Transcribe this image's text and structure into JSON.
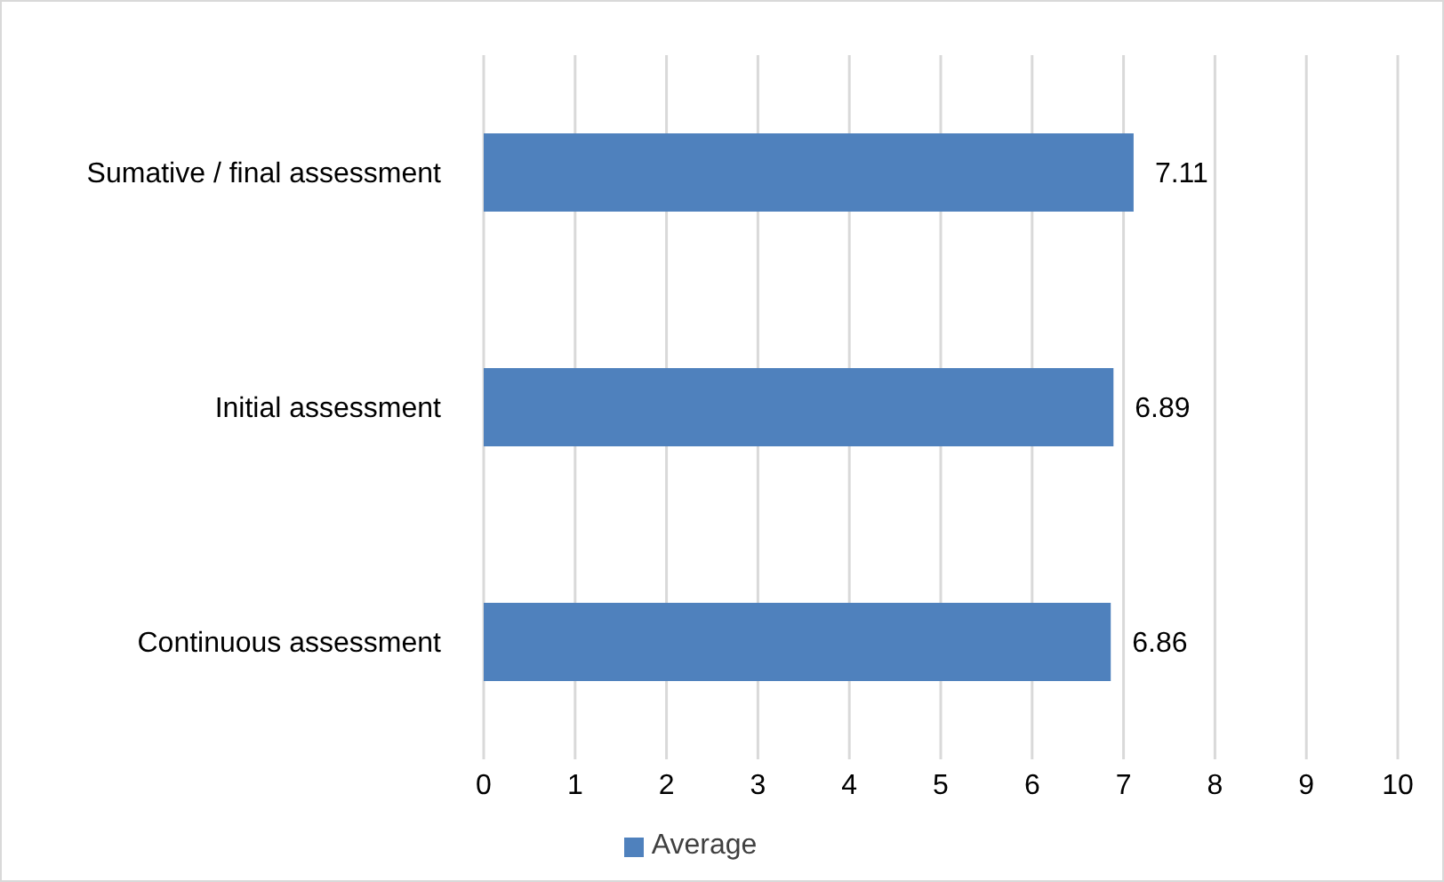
{
  "chart_data": {
    "type": "bar",
    "orientation": "horizontal",
    "categories": [
      "Sumative / final assessment",
      "Initial assessment",
      "Continuous assessment"
    ],
    "series": [
      {
        "name": "Average",
        "color": "#4f81bd",
        "values": [
          7.11,
          6.89,
          6.86
        ]
      }
    ],
    "xlim": [
      0,
      10
    ],
    "xticks": [
      0,
      1,
      2,
      3,
      4,
      5,
      6,
      7,
      8,
      9,
      10
    ],
    "grid": "x",
    "legend": "bottom",
    "data_labels": true
  }
}
